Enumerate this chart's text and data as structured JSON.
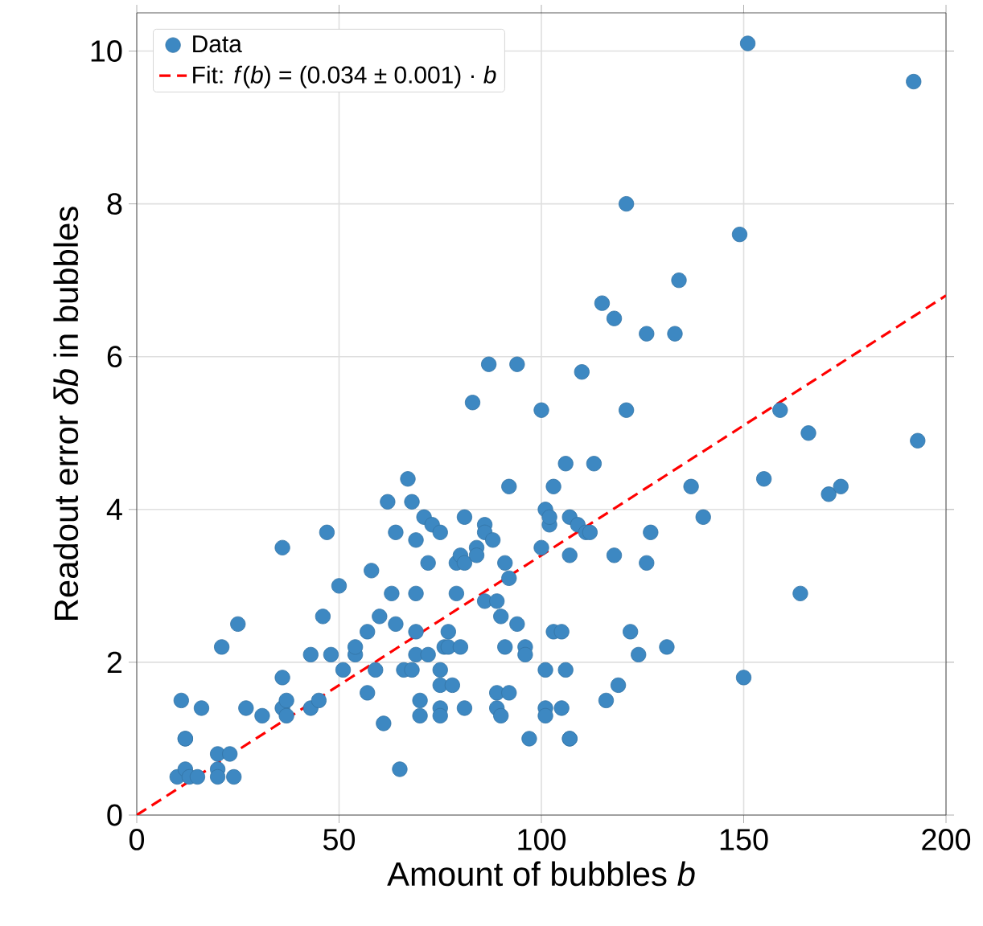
{
  "chart_data": {
    "type": "scatter",
    "xlabel": "Amount of bubbles *b*",
    "ylabel": "Readout error *δb* in bubbles",
    "xlim": [
      0,
      200
    ],
    "ylim": [
      0,
      10.5
    ],
    "xticks": [
      0,
      50,
      100,
      150,
      200
    ],
    "yticks": [
      0,
      2,
      4,
      6,
      8,
      10
    ],
    "grid": true,
    "legend": "top left",
    "series": [
      {
        "name": "Data",
        "color": "#3d88c2",
        "marker": "circle",
        "x": [
          10,
          11,
          12,
          12,
          12,
          13,
          15,
          16,
          20,
          20,
          20,
          21,
          23,
          24,
          25,
          27,
          31,
          36,
          36,
          36,
          37,
          37,
          43,
          43,
          45,
          46,
          47,
          48,
          50,
          51,
          54,
          54,
          57,
          57,
          58,
          59,
          60,
          61,
          62,
          63,
          64,
          64,
          65,
          66,
          67,
          68,
          68,
          69,
          69,
          69,
          69,
          70,
          70,
          71,
          72,
          72,
          73,
          75,
          75,
          75,
          75,
          75,
          76,
          77,
          77,
          78,
          79,
          79,
          80,
          80,
          81,
          81,
          81,
          83,
          84,
          84,
          86,
          86,
          86,
          87,
          88,
          89,
          89,
          89,
          90,
          90,
          91,
          91,
          92,
          92,
          92,
          94,
          94,
          96,
          96,
          97,
          100,
          100,
          101,
          101,
          101,
          101,
          102,
          102,
          103,
          103,
          105,
          105,
          106,
          106,
          107,
          107,
          107,
          107,
          109,
          110,
          111,
          112,
          113,
          115,
          116,
          118,
          118,
          119,
          121,
          121,
          122,
          124,
          126,
          126,
          127,
          131,
          133,
          134,
          137,
          140,
          149,
          150,
          151,
          155,
          159,
          164,
          166,
          171,
          174,
          192,
          193
        ],
        "values": [
          0.5,
          1.5,
          1.0,
          1.0,
          0.6,
          0.5,
          0.5,
          1.4,
          0.8,
          0.6,
          0.5,
          2.2,
          0.8,
          0.5,
          2.5,
          1.4,
          1.3,
          3.5,
          1.8,
          1.4,
          1.3,
          1.5,
          1.4,
          2.1,
          1.5,
          2.6,
          3.7,
          2.1,
          3.0,
          1.9,
          2.1,
          2.2,
          1.6,
          2.4,
          3.2,
          1.9,
          2.6,
          1.2,
          4.1,
          2.9,
          3.7,
          2.5,
          0.6,
          1.9,
          4.4,
          4.1,
          1.9,
          3.6,
          2.9,
          2.4,
          2.1,
          1.5,
          1.3,
          3.9,
          3.3,
          2.1,
          3.8,
          3.7,
          1.9,
          1.7,
          1.4,
          1.3,
          2.2,
          2.4,
          2.2,
          1.7,
          3.3,
          2.9,
          3.4,
          2.2,
          3.9,
          3.3,
          1.4,
          5.4,
          3.5,
          3.4,
          3.8,
          3.7,
          2.8,
          5.9,
          3.6,
          2.8,
          1.6,
          1.4,
          2.6,
          1.3,
          2.2,
          3.3,
          4.3,
          3.1,
          1.6,
          5.9,
          2.5,
          2.2,
          2.1,
          1.0,
          5.3,
          3.5,
          4.0,
          1.9,
          1.4,
          1.3,
          3.8,
          3.9,
          4.3,
          2.4,
          2.4,
          1.4,
          4.6,
          1.9,
          3.9,
          3.4,
          1.0,
          1.0,
          3.8,
          5.8,
          3.7,
          3.7,
          4.6,
          6.7,
          1.5,
          6.5,
          3.4,
          1.7,
          8.0,
          5.3,
          2.4,
          2.1,
          6.3,
          3.3,
          3.7,
          2.2,
          6.3,
          7.0,
          4.3,
          3.9,
          7.6,
          1.8,
          10.1,
          4.4,
          5.3,
          2.9,
          5.0,
          4.2,
          4.3,
          9.6,
          4.9
        ]
      },
      {
        "name": "Fit: *f*(*b*) = (0.034 ± 0.001) · *b*",
        "type": "line",
        "color": "#ff0000",
        "marker": "none",
        "line_style": "dashed",
        "x": [
          0,
          200
        ],
        "values": [
          0,
          6.8
        ]
      }
    ]
  }
}
